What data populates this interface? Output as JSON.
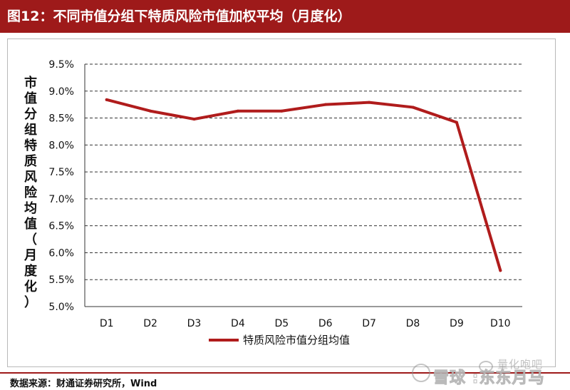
{
  "header": {
    "title": "图12：不同市值分组下特质风险市值加权平均（月度化）"
  },
  "footer": {
    "source": "数据来源：财通证券研究所，Wind"
  },
  "watermark": {
    "line1": "量化咆吧",
    "line2": "雪球 :东东月马"
  },
  "colors": {
    "header_bg": "#9e1a1a",
    "series": "#b01c1c",
    "grid": "#333333"
  },
  "chart_data": {
    "type": "line",
    "title": "",
    "ylabel_chars": [
      "市",
      "值",
      "分",
      "组",
      "特",
      "质",
      "风",
      "险",
      "均",
      "值",
      "（",
      "月",
      "度",
      "化",
      "）"
    ],
    "xlabel": "",
    "categories": [
      "D1",
      "D2",
      "D3",
      "D4",
      "D5",
      "D6",
      "D7",
      "D8",
      "D9",
      "D10"
    ],
    "series": [
      {
        "name": "特质风险市值分组均值",
        "values": [
          8.84,
          8.63,
          8.48,
          8.63,
          8.63,
          8.75,
          8.79,
          8.7,
          8.42,
          5.67
        ]
      }
    ],
    "yticks": [
      "5.0%",
      "5.5%",
      "6.0%",
      "6.5%",
      "7.0%",
      "7.5%",
      "8.0%",
      "8.5%",
      "9.0%",
      "9.5%"
    ],
    "ylim": [
      5.0,
      9.5
    ],
    "y_unit": "%",
    "grid": "dashed horizontal",
    "legend_position": "bottom"
  }
}
